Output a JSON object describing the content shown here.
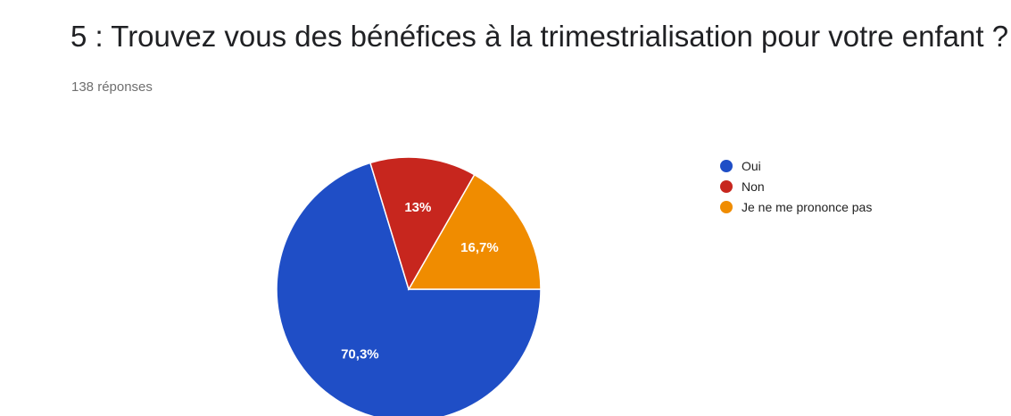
{
  "header": {
    "title": "5 : Trouvez vous des bénéfices à la trimestrialisation pour votre enfant ?",
    "responses": "138 réponses"
  },
  "chart_data": {
    "type": "pie",
    "title": "5 : Trouvez vous des bénéfices à la trimestrialisation pour votre enfant ?",
    "slices": [
      {
        "name": "Oui",
        "value": 70.3,
        "label": "70,3%",
        "color": "#1f4ec6"
      },
      {
        "name": "Non",
        "value": 13.0,
        "label": "13%",
        "color": "#c7261e"
      },
      {
        "name": "Je ne me prononce pas",
        "value": 16.7,
        "label": "16,7%",
        "color": "#f08c00"
      }
    ],
    "legend_position": "right"
  }
}
